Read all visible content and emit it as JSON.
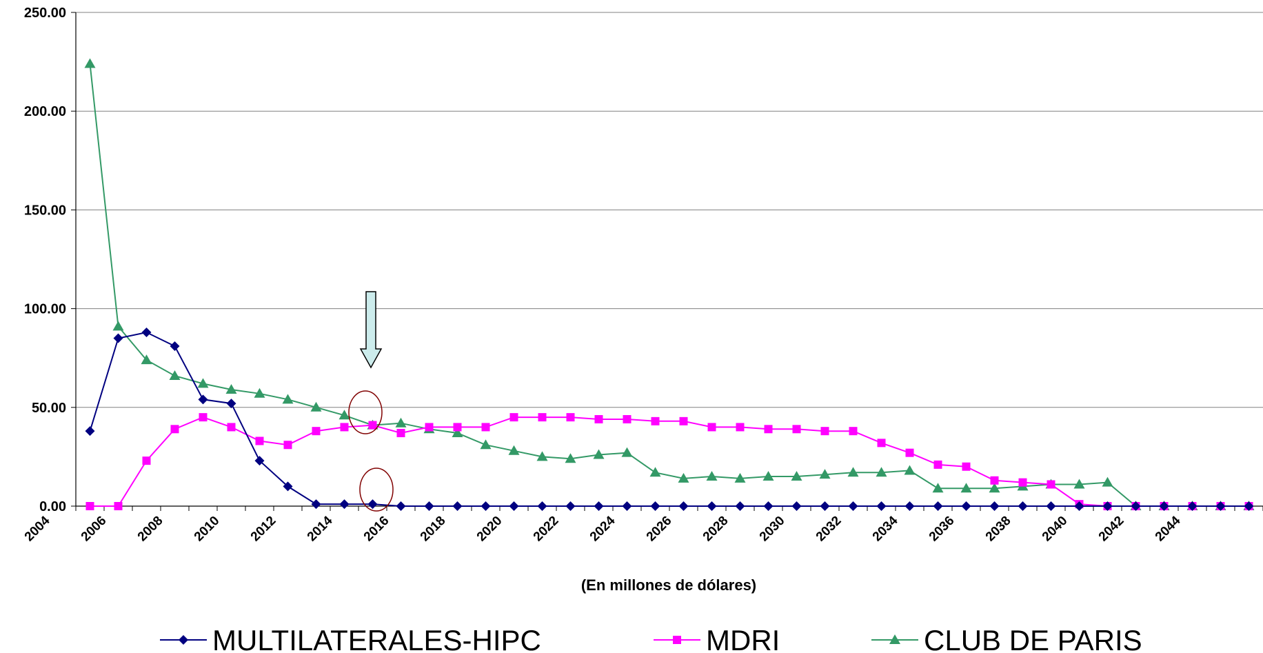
{
  "chart_data": {
    "type": "line",
    "xlabel": "(En millones de dólares)",
    "ylabel": "",
    "ylim": [
      0,
      250
    ],
    "y_ticks": [
      "0.00",
      "50.00",
      "100.00",
      "150.00",
      "200.00",
      "250.00"
    ],
    "x_ticks": [
      "2004",
      "2006",
      "2008",
      "2010",
      "2012",
      "2014",
      "2016",
      "2018",
      "2020",
      "2022",
      "2024",
      "2026",
      "2028",
      "2030",
      "2032",
      "2034",
      "2036",
      "2038",
      "2040",
      "2042",
      "2044"
    ],
    "grid": "horizontal",
    "legend_position": "bottom",
    "x": [
      2005,
      2006,
      2007,
      2008,
      2009,
      2010,
      2011,
      2012,
      2013,
      2014,
      2015,
      2016,
      2017,
      2018,
      2019,
      2020,
      2021,
      2022,
      2023,
      2024,
      2025,
      2026,
      2027,
      2028,
      2029,
      2030,
      2031,
      2032,
      2033,
      2034,
      2035,
      2036,
      2037,
      2038,
      2039,
      2040,
      2041,
      2042,
      2043,
      2044,
      2045,
      2046
    ],
    "series": [
      {
        "name": "MULTILATERALES-HIPC",
        "color": "#000080",
        "marker": "diamond",
        "values": [
          38,
          85,
          88,
          81,
          54,
          52,
          23,
          10,
          1,
          1,
          1,
          0,
          0,
          0,
          0,
          0,
          0,
          0,
          0,
          0,
          0,
          0,
          0,
          0,
          0,
          0,
          0,
          0,
          0,
          0,
          0,
          0,
          0,
          0,
          0,
          0,
          0,
          0,
          0,
          0,
          0,
          0
        ]
      },
      {
        "name": "MDRI",
        "color": "#FF00FF",
        "marker": "square",
        "values": [
          0,
          0,
          23,
          39,
          45,
          40,
          33,
          31,
          38,
          40,
          41,
          37,
          40,
          40,
          40,
          45,
          45,
          45,
          44,
          44,
          43,
          43,
          40,
          40,
          39,
          39,
          38,
          38,
          32,
          27,
          21,
          20,
          13,
          12,
          11,
          1,
          0,
          0,
          0,
          0,
          0,
          0
        ]
      },
      {
        "name": "CLUB DE PARIS",
        "color": "#339966",
        "marker": "triangle",
        "values": [
          224,
          91,
          74,
          66,
          62,
          59,
          57,
          54,
          50,
          46,
          41,
          42,
          39,
          37,
          31,
          28,
          25,
          24,
          26,
          27,
          17,
          14,
          15,
          14,
          15,
          15,
          16,
          17,
          17,
          18,
          9,
          9,
          9,
          10,
          11,
          11,
          12,
          0,
          0,
          0,
          0,
          0
        ]
      }
    ]
  },
  "annotations": {
    "arrow_color": "#CCECEC",
    "circle_color": "#800000"
  }
}
